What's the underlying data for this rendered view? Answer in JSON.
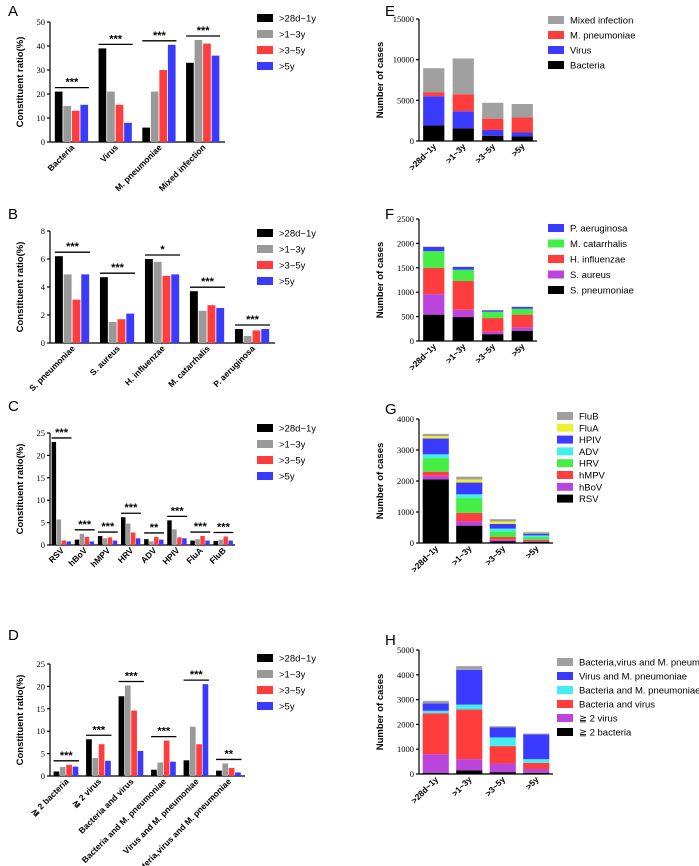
{
  "figure": {
    "panel_labels": [
      "A",
      "B",
      "C",
      "D",
      "E",
      "F",
      "G",
      "H"
    ]
  },
  "chart_data": [
    {
      "id": "A",
      "type": "bar",
      "ylabel": "Constituent ratio(%)",
      "ylim": [
        0,
        50
      ],
      "yticks": [
        0,
        10,
        20,
        30,
        40,
        50
      ],
      "categories": [
        "Bacteria",
        "Virus",
        "M. pneumoniae",
        "Mixed infection"
      ],
      "series": [
        {
          "name": ">28d~1y",
          "color": "#000000",
          "values": [
            21,
            39,
            6,
            33
          ]
        },
        {
          "name": ">1~3y",
          "color": "#999999",
          "values": [
            15,
            21,
            21,
            42.5
          ]
        },
        {
          "name": ">3~5y",
          "color": "#ff3d3d",
          "values": [
            13,
            15.5,
            30,
            41
          ]
        },
        {
          "name": ">5y",
          "color": "#3b3bff",
          "values": [
            15.5,
            8,
            40.5,
            36
          ]
        }
      ],
      "significance": [
        "***",
        "***",
        "***",
        "***"
      ],
      "legend": "right"
    },
    {
      "id": "B",
      "type": "bar",
      "ylabel": "Constituent ratio(%)",
      "ylim": [
        0,
        8
      ],
      "yticks": [
        0,
        2,
        4,
        6,
        8
      ],
      "categories": [
        "S. pneumoniae",
        "S. aureus",
        "H. influenzae",
        "M. catarrhalis",
        "P. aeruginosa"
      ],
      "series": [
        {
          "name": ">28d~1y",
          "color": "#000000",
          "values": [
            6.2,
            4.7,
            6.0,
            3.7,
            1.0
          ]
        },
        {
          "name": ">1~3y",
          "color": "#999999",
          "values": [
            4.9,
            1.5,
            5.8,
            2.3,
            0.5
          ]
        },
        {
          "name": ">3~5y",
          "color": "#ff3d3d",
          "values": [
            3.1,
            1.7,
            4.8,
            2.7,
            0.9
          ]
        },
        {
          "name": ">5y",
          "color": "#3b3bff",
          "values": [
            4.9,
            2.1,
            4.9,
            2.5,
            1.0
          ]
        }
      ],
      "significance": [
        "***",
        "***",
        "*",
        "***",
        "***"
      ],
      "legend": "right"
    },
    {
      "id": "C",
      "type": "bar",
      "ylabel": "Constituent ratio(%)",
      "ylim": [
        0,
        25
      ],
      "yticks": [
        0,
        5,
        10,
        15,
        20,
        25
      ],
      "categories": [
        "RSV",
        "hBoV",
        "hMPV",
        "HRV",
        "ADV",
        "HPIV",
        "FluA",
        "FluB"
      ],
      "series": [
        {
          "name": ">28d~1y",
          "color": "#000000",
          "values": [
            23,
            1.2,
            2.0,
            6.2,
            1.3,
            5.5,
            1.0,
            0.9
          ]
        },
        {
          "name": ">1~3y",
          "color": "#999999",
          "values": [
            5.7,
            2.5,
            1.5,
            4.8,
            0.8,
            3.5,
            1.3,
            1.2
          ]
        },
        {
          "name": ">3~5y",
          "color": "#ff3d3d",
          "values": [
            1.0,
            1.8,
            1.7,
            2.8,
            1.8,
            1.7,
            2.0,
            1.9
          ]
        },
        {
          "name": ">5y",
          "color": "#3b3bff",
          "values": [
            0.8,
            0.8,
            1.0,
            1.5,
            1.2,
            1.5,
            1.0,
            1.0
          ]
        }
      ],
      "significance": [
        "***",
        "***",
        "***",
        "***",
        "**",
        "***",
        "***",
        "***"
      ],
      "legend": "right"
    },
    {
      "id": "D",
      "type": "bar",
      "ylabel": "Constituent ratio(%)",
      "ylim": [
        0,
        25
      ],
      "yticks": [
        0,
        5,
        10,
        15,
        20,
        25
      ],
      "categories": [
        "≧ 2 bacteria",
        "≧ 2 virus",
        "Bacteria and virus",
        "Bacteria and M. pneumoniae",
        "Virus and M. pneumoniae",
        "Bacteria,virus and M. pneumoniae"
      ],
      "series": [
        {
          "name": ">28d~1y",
          "color": "#000000",
          "values": [
            1.0,
            8.2,
            17.8,
            1.4,
            3.5,
            1.2
          ]
        },
        {
          "name": ">1~3y",
          "color": "#999999",
          "values": [
            2.0,
            4.0,
            20.2,
            3.0,
            11.0,
            2.8
          ]
        },
        {
          "name": ">3~5y",
          "color": "#ff3d3d",
          "values": [
            2.5,
            7.1,
            14.6,
            7.9,
            7.1,
            1.8
          ]
        },
        {
          "name": ">5y",
          "color": "#3b3bff",
          "values": [
            2.1,
            3.4,
            5.6,
            3.2,
            20.5,
            0.8
          ]
        }
      ],
      "significance": [
        "***",
        "***",
        "***",
        "***",
        "***",
        "**"
      ],
      "legend": "right"
    },
    {
      "id": "E",
      "type": "stacked-bar",
      "ylabel": "Number of cases",
      "ylim": [
        0,
        15000
      ],
      "yticks": [
        0,
        5000,
        10000,
        15000
      ],
      "categories": [
        ">28d~1y",
        ">1~3y",
        ">3~5y",
        ">5y"
      ],
      "series": [
        {
          "name": "Bacteria",
          "color": "#000000",
          "values": [
            1900,
            1550,
            650,
            550
          ]
        },
        {
          "name": "Virus",
          "color": "#3b3bff",
          "values": [
            3600,
            2100,
            700,
            500
          ]
        },
        {
          "name": "M. pneumoniae",
          "color": "#ff3d3d",
          "values": [
            500,
            2100,
            1400,
            1850
          ]
        },
        {
          "name": "Mixed infection",
          "color": "#a0a0a0",
          "values": [
            2950,
            4400,
            1950,
            1650
          ]
        }
      ],
      "legend_order": [
        "Mixed infection",
        "M. pneumoniae",
        "Virus",
        "Bacteria"
      ],
      "legend": "right"
    },
    {
      "id": "F",
      "type": "stacked-bar",
      "ylabel": "Number of cases",
      "ylim": [
        0,
        2500
      ],
      "yticks": [
        0,
        500,
        1000,
        1500,
        2000,
        2500
      ],
      "categories": [
        ">28d~1y",
        ">1~3y",
        ">3~5y",
        ">5y"
      ],
      "series": [
        {
          "name": "S. pneumoniae",
          "color": "#000000",
          "values": [
            540,
            490,
            140,
            210
          ]
        },
        {
          "name": "S. aureus",
          "color": "#bb44dd",
          "values": [
            420,
            150,
            50,
            70
          ]
        },
        {
          "name": "H. influenzae",
          "color": "#ff3d3d",
          "values": [
            540,
            590,
            280,
            260
          ]
        },
        {
          "name": "M. catarrhalis",
          "color": "#44ee44",
          "values": [
            340,
            230,
            130,
            120
          ]
        },
        {
          "name": "P. aeruginosa",
          "color": "#3b3bff",
          "values": [
            90,
            60,
            30,
            40
          ]
        }
      ],
      "legend_order": [
        "P. aeruginosa",
        "M. catarrhalis",
        "H. influenzae",
        "S. aureus",
        "S. pneumoniae"
      ],
      "legend": "right"
    },
    {
      "id": "G",
      "type": "stacked-bar",
      "ylabel": "Number of cases",
      "ylim": [
        0,
        4000
      ],
      "yticks": [
        0,
        1000,
        2000,
        3000,
        4000
      ],
      "categories": [
        ">28d~1y",
        ">1~3y",
        ">3~5y",
        ">5y"
      ],
      "series": [
        {
          "name": "RSV",
          "color": "#000000",
          "values": [
            2050,
            560,
            60,
            40
          ]
        },
        {
          "name": "hBoV",
          "color": "#bb44dd",
          "values": [
            120,
            140,
            45,
            25
          ]
        },
        {
          "name": "hMPV",
          "color": "#ff3d3d",
          "values": [
            130,
            270,
            90,
            40
          ]
        },
        {
          "name": "HRV",
          "color": "#44ee44",
          "values": [
            440,
            480,
            180,
            90
          ]
        },
        {
          "name": "ADV",
          "color": "#44eeee",
          "values": [
            120,
            120,
            90,
            50
          ]
        },
        {
          "name": "HPIV",
          "color": "#3b3bff",
          "values": [
            510,
            380,
            150,
            60
          ]
        },
        {
          "name": "FluA",
          "color": "#eeee33",
          "values": [
            80,
            100,
            80,
            25
          ]
        },
        {
          "name": "FluB",
          "color": "#a0a0a0",
          "values": [
            70,
            90,
            75,
            30
          ]
        }
      ],
      "legend_order": [
        "FluB",
        "FluA",
        "HPIV",
        "ADV",
        "HRV",
        "hMPV",
        "hBoV",
        "RSV"
      ],
      "legend": "right"
    },
    {
      "id": "H",
      "type": "stacked-bar",
      "ylabel": "Number of cases",
      "ylim": [
        0,
        5000
      ],
      "yticks": [
        0,
        1000,
        2000,
        3000,
        4000,
        5000
      ],
      "categories": [
        ">28d~1y",
        ">1~3y",
        ">3~5y",
        ">5y"
      ],
      "series": [
        {
          "name": "≧ 2 bacteria",
          "color": "#000000",
          "values": [
            50,
            150,
            75,
            50
          ]
        },
        {
          "name": "≧ 2 virus",
          "color": "#bb44dd",
          "values": [
            750,
            450,
            350,
            150
          ]
        },
        {
          "name": "Bacteria and virus",
          "color": "#ff3d3d",
          "values": [
            1650,
            2000,
            700,
            250
          ]
        },
        {
          "name": "Bacteria and M. pneumoniae",
          "color": "#44eeee",
          "values": [
            100,
            200,
            350,
            150
          ]
        },
        {
          "name": "Virus and M. pneumoniae",
          "color": "#3b3bff",
          "values": [
            300,
            1400,
            400,
            1000
          ]
        },
        {
          "name": "Bacteria,virus and M. pneumoniae",
          "color": "#a0a0a0",
          "values": [
            100,
            150,
            50,
            30
          ]
        }
      ],
      "legend_order": [
        "Bacteria,virus and M. pneumoniae",
        "Virus and M. pneumoniae",
        "Bacteria and M. pneumoniae",
        "Bacteria and virus",
        "≧ 2 virus",
        "≧ 2 bacteria"
      ],
      "legend": "right"
    }
  ]
}
